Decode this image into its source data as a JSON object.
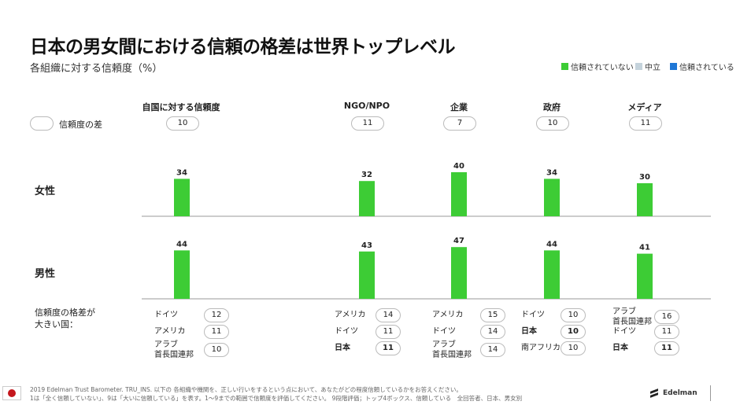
{
  "title": "日本の男女間における信頼の格差は世界トップレベル",
  "subtitle": "各組織に対する信頼度（%）",
  "legend": [
    {
      "label": "信頼されていない",
      "color": "#3dcc35"
    },
    {
      "label": "中立",
      "color": "#c5d3dc"
    },
    {
      "label": "信頼されている",
      "color": "#1f77d6"
    }
  ],
  "gap_legend_label": "信頼度の差",
  "rows": [
    "女性",
    "男性"
  ],
  "big_gap_label": "信頼度の格差が\n大きい国：",
  "chart_data": {
    "type": "bar",
    "categories": [
      "自国に対する信頼度",
      "NGO/NPO",
      "企業",
      "政府",
      "メディア"
    ],
    "gaps": [
      10,
      11,
      7,
      10,
      11
    ],
    "series": [
      {
        "name": "女性",
        "values": [
          34,
          32,
          40,
          34,
          30
        ]
      },
      {
        "name": "男性",
        "values": [
          44,
          43,
          47,
          44,
          41
        ]
      }
    ],
    "bar_color": "#3dcc35"
  },
  "top_gap_countries": [
    [
      {
        "name": "ドイツ",
        "value": "12",
        "bold": false
      },
      {
        "name": "アメリカ",
        "value": "11",
        "bold": false
      },
      {
        "name": "アラブ\n首長国連邦",
        "value": "10",
        "bold": false
      }
    ],
    [
      {
        "name": "アメリカ",
        "value": "14",
        "bold": false
      },
      {
        "name": "ドイツ",
        "value": "11",
        "bold": false
      },
      {
        "name": "日本",
        "value": "11",
        "bold": true
      }
    ],
    [
      {
        "name": "アメリカ",
        "value": "15",
        "bold": false
      },
      {
        "name": "ドイツ",
        "value": "14",
        "bold": false
      },
      {
        "name": "アラブ\n首長国連邦",
        "value": "14",
        "bold": false
      }
    ],
    [
      {
        "name": "ドイツ",
        "value": "10",
        "bold": false
      },
      {
        "name": "日本",
        "value": "10",
        "bold": true
      },
      {
        "name": "南アフリカ",
        "value": "10",
        "bold": false
      }
    ],
    [
      {
        "name": "アラブ\n首長国連邦",
        "value": "16",
        "bold": false
      },
      {
        "name": "ドイツ",
        "value": "11",
        "bold": false
      },
      {
        "name": "日本",
        "value": "11",
        "bold": true
      }
    ]
  ],
  "footer": {
    "line1": "2019 Edelman Trust Barometer. TRU_INS. 以下の 各組織や機関を、正しい行いをするという点において、あなたがどの程度信頼しているかをお答えください。",
    "line2": "1は「全く信頼していない」、9は「大いに信頼している」を表す。1～9までの範囲で信頼度を評価してください。 9段階評価；トップ4ボックス、信頼している　全回答者、日本、男女別",
    "brand": "Edelman"
  }
}
